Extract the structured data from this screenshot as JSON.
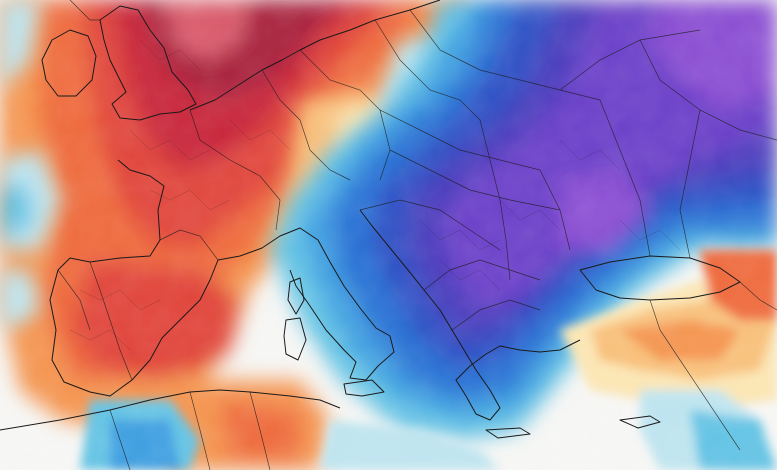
{
  "map": {
    "palette": {
      "very_warm": "#a8203c",
      "warm_dark": "#c8283a",
      "warm": "#e0443a",
      "warm_mid": "#ee6a3e",
      "orange": "#f49450",
      "light_orange": "#f8c07a",
      "pale_yellow": "#fbe5b2",
      "neutral": "#f6f6f4",
      "pale_cyan": "#bde4ef",
      "cyan": "#64c3e4",
      "light_blue": "#3e9ee0",
      "blue": "#2a72d4",
      "blue_deep": "#2f50c4",
      "indigo": "#4a3dbc",
      "purple": "#6a3fc8",
      "violet": "#8a4dd2",
      "land_pink": "#d95a6a",
      "border": "#1a1a1a"
    },
    "icons": {
      "coastline": "coastline-icon",
      "borders": "country-border-icon"
    }
  }
}
